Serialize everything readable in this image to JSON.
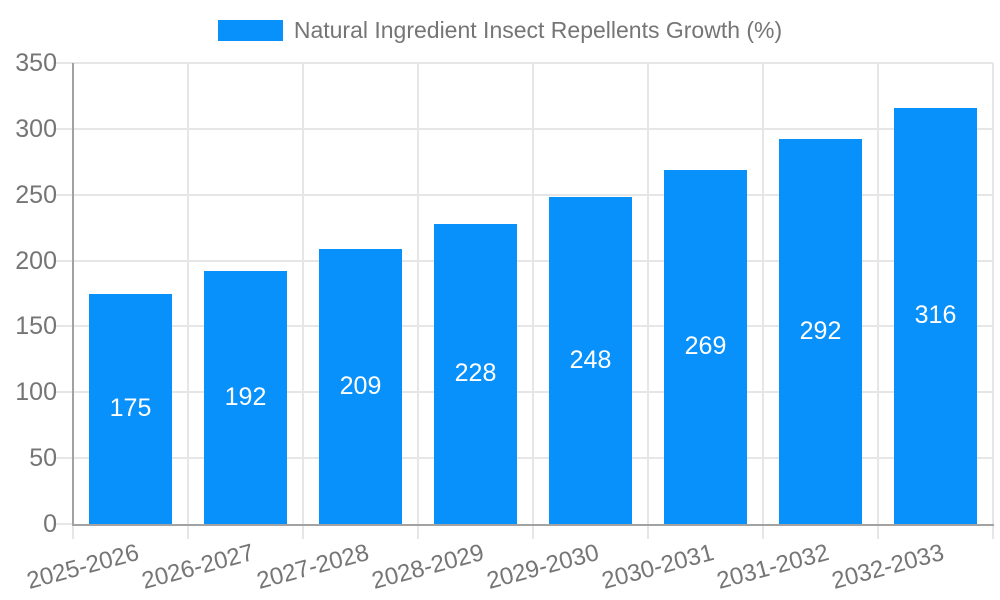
{
  "chart_data": {
    "type": "bar",
    "title": "",
    "xlabel": "",
    "ylabel": "",
    "categories": [
      "2025-2026",
      "2026-2027",
      "2027-2028",
      "2028-2029",
      "2029-2030",
      "2030-2031",
      "2031-2032",
      "2032-2033"
    ],
    "series": [
      {
        "name": "Natural Ingredient Insect Repellents Growth (%)",
        "values": [
          175,
          192,
          209,
          228,
          248,
          269,
          292,
          316
        ]
      }
    ],
    "value_labels_shown": true,
    "ylim": [
      0,
      350
    ],
    "yticks": [
      0,
      50,
      100,
      150,
      200,
      250,
      300,
      350
    ],
    "grid": true,
    "legend_position": "top",
    "colors": {
      "bar": "#0991fb",
      "value_label": "#ffffff",
      "grid": "#e6e6e6",
      "axis": "#a2a2a2",
      "tick_text": "#757575",
      "legend_text": "#757575",
      "background": "#ffffff"
    }
  }
}
